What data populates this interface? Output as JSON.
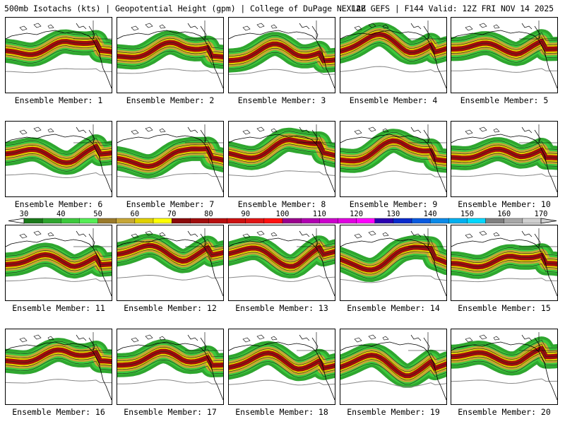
{
  "header": {
    "title_left": "500mb Isotachs (kts) | Geopotential Height (gpm) | College of DuPage NEXLAB",
    "title_right": "12Z GEFS | F144 Valid: 12Z FRI NOV 14 2025"
  },
  "colorbar": {
    "ticks": [
      "30",
      "40",
      "50",
      "60",
      "70",
      "80",
      "90",
      "100",
      "110",
      "120",
      "130",
      "140",
      "150",
      "160",
      "170"
    ],
    "colors": [
      "#1a7a1a",
      "#2fa62f",
      "#3cc93c",
      "#55ee55",
      "#9a7a2a",
      "#c6a636",
      "#e0d000",
      "#ffff00",
      "#8b0a0a",
      "#a00c0c",
      "#b80e0e",
      "#cc1010",
      "#e01414",
      "#ff1010",
      "#9a008c",
      "#b000b0",
      "#cc00cc",
      "#e000e0",
      "#ff00ff",
      "#2a00b0",
      "#0a2acc",
      "#0a5ae0",
      "#0a8ae8",
      "#00b0f0",
      "#00d8ff",
      "#808080",
      "#a8a8a8",
      "#d0d0d0"
    ]
  },
  "panels": [
    {
      "label": "Ensemble Member: 1"
    },
    {
      "label": "Ensemble Member: 2"
    },
    {
      "label": "Ensemble Member: 3"
    },
    {
      "label": "Ensemble Member: 4"
    },
    {
      "label": "Ensemble Member: 5"
    },
    {
      "label": "Ensemble Member: 6"
    },
    {
      "label": "Ensemble Member: 7"
    },
    {
      "label": "Ensemble Member: 8"
    },
    {
      "label": "Ensemble Member: 9"
    },
    {
      "label": "Ensemble Member: 10"
    },
    {
      "label": "Ensemble Member: 11"
    },
    {
      "label": "Ensemble Member: 12"
    },
    {
      "label": "Ensemble Member: 13"
    },
    {
      "label": "Ensemble Member: 14"
    },
    {
      "label": "Ensemble Member: 15"
    },
    {
      "label": "Ensemble Member: 16"
    },
    {
      "label": "Ensemble Member: 17"
    },
    {
      "label": "Ensemble Member: 18"
    },
    {
      "label": "Ensemble Member: 19"
    },
    {
      "label": "Ensemble Member: 20"
    }
  ]
}
